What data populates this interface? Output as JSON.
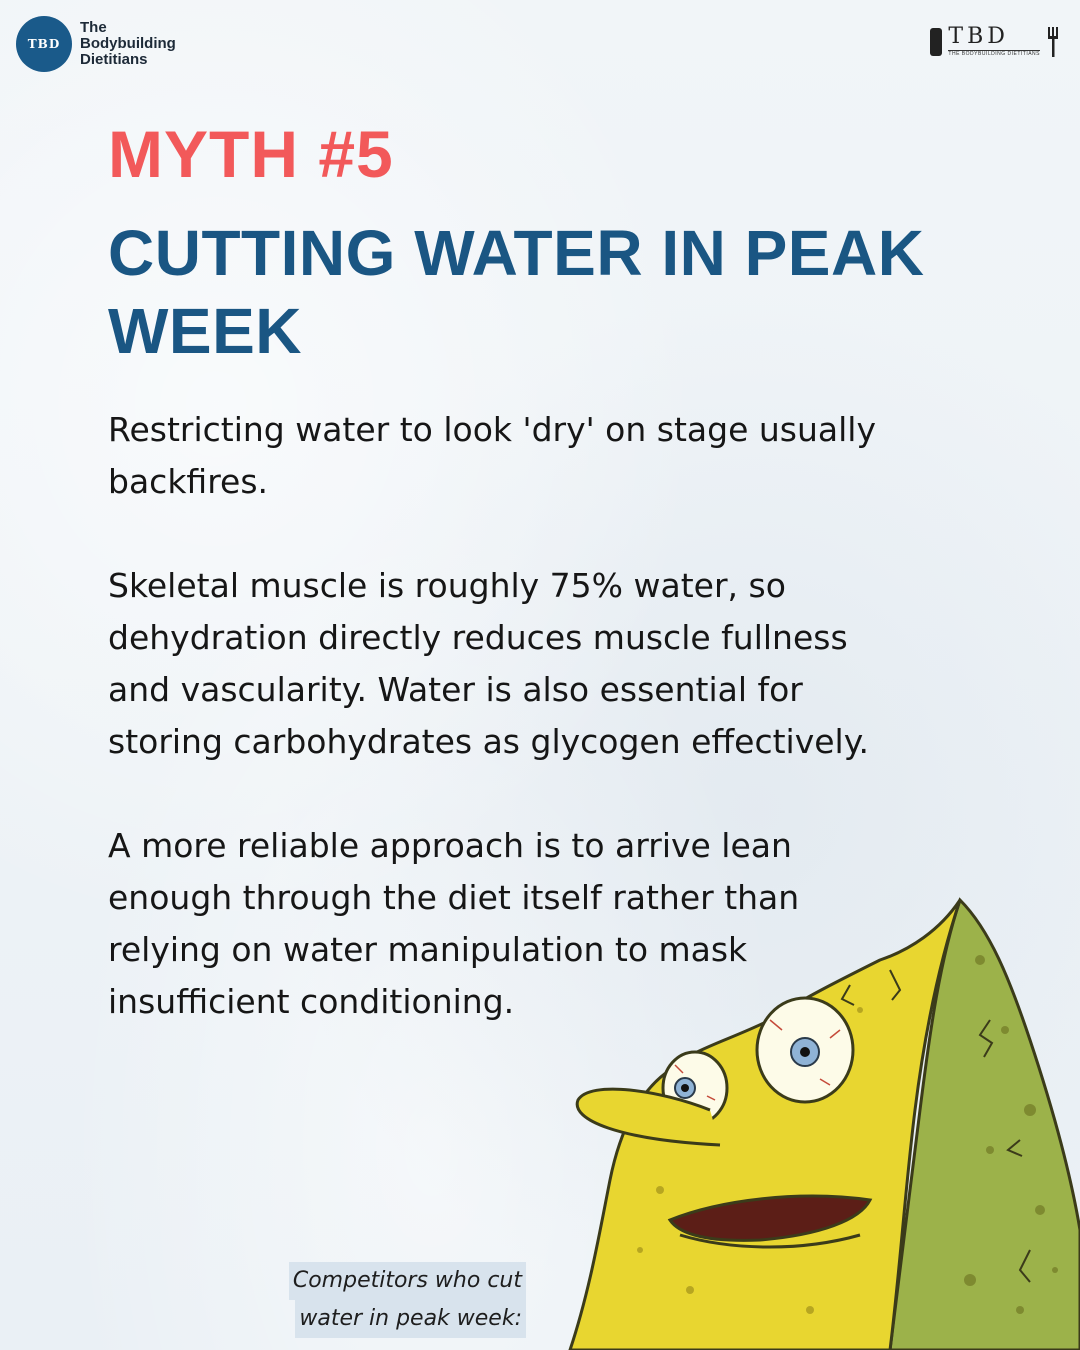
{
  "brand": {
    "logo_text": "TBD",
    "name_line1": "The",
    "name_line2": "Bodybuilding",
    "name_line3": "Dietitians",
    "right_mark": "TBD",
    "right_tag": "THE BODYBUILDING DIETITIANS"
  },
  "myth_label": "MYTH #5",
  "headline_line1": "CUTTING WATER IN PEAK",
  "headline_line2": "WEEK",
  "paragraphs": [
    "Restricting water to look 'dry' on stage usually backfires.",
    "Skeletal muscle is roughly 75% water, so dehydration directly reduces muscle fullness and vascularity. Water is also essential for storing carbohydrates as glycogen effectively.",
    "A more reliable approach is to arrive lean enough through the diet itself rather than relying on water manipulation to mask insufficient conditioning."
  ],
  "caption_line1": "Competitors who cut",
  "caption_line2": "water in peak week:",
  "colors": {
    "accent_red": "#f2595a",
    "brand_blue": "#1a5683",
    "sponge_yellow": "#e8d630",
    "sponge_green": "#9cb24a"
  }
}
